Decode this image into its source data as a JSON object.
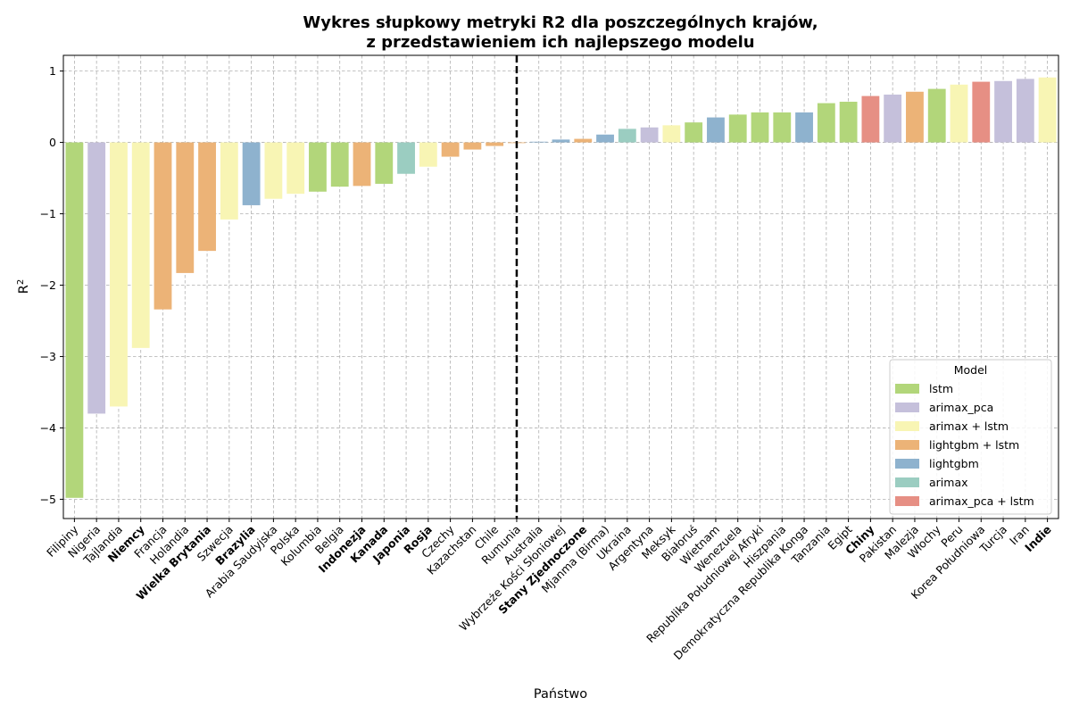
{
  "chart_data": {
    "type": "bar",
    "title_line1": "Wykres słupkowy metryki R2 dla poszczególnych krajów,",
    "title_line2": "z przedstawieniem ich najlepszego modelu",
    "xlabel": "Państwo",
    "ylabel_main": "R",
    "ylabel_sup": "2",
    "ylim": [
      -5.27,
      1.22
    ],
    "yticks": [
      {
        "value": 1,
        "label": "1"
      },
      {
        "value": 0,
        "label": "0"
      },
      {
        "value": -1,
        "label": "−1"
      },
      {
        "value": -2,
        "label": "−2"
      },
      {
        "value": -3,
        "label": "−3"
      },
      {
        "value": -4,
        "label": "−4"
      },
      {
        "value": -5,
        "label": "−5"
      }
    ],
    "grid": true,
    "divider_after_index": 20,
    "categories": [
      {
        "name": "Filipiny",
        "value": -4.98,
        "model": "lstm",
        "bold": false
      },
      {
        "name": "Nigeria",
        "value": -3.8,
        "model": "arimax_pca",
        "bold": false
      },
      {
        "name": "Tajlandia",
        "value": -3.7,
        "model": "arimax + lstm",
        "bold": false
      },
      {
        "name": "Niemcy",
        "value": -2.88,
        "model": "arimax + lstm",
        "bold": true
      },
      {
        "name": "Francja",
        "value": -2.34,
        "model": "lightgbm + lstm",
        "bold": false
      },
      {
        "name": "Holandia",
        "value": -1.83,
        "model": "lightgbm + lstm",
        "bold": false
      },
      {
        "name": "Wielka Brytania",
        "value": -1.52,
        "model": "lightgbm + lstm",
        "bold": true
      },
      {
        "name": "Szwecja",
        "value": -1.08,
        "model": "arimax + lstm",
        "bold": false
      },
      {
        "name": "Brazylia",
        "value": -0.88,
        "model": "lightgbm",
        "bold": true
      },
      {
        "name": "Arabia Saudyjska",
        "value": -0.79,
        "model": "arimax + lstm",
        "bold": false
      },
      {
        "name": "Polska",
        "value": -0.72,
        "model": "arimax + lstm",
        "bold": false
      },
      {
        "name": "Kolumbia",
        "value": -0.69,
        "model": "lstm",
        "bold": false
      },
      {
        "name": "Belgia",
        "value": -0.62,
        "model": "lstm",
        "bold": false
      },
      {
        "name": "Indonezja",
        "value": -0.61,
        "model": "lightgbm + lstm",
        "bold": true
      },
      {
        "name": "Kanada",
        "value": -0.58,
        "model": "lstm",
        "bold": true
      },
      {
        "name": "Japonia",
        "value": -0.44,
        "model": "arimax",
        "bold": true
      },
      {
        "name": "Rosja",
        "value": -0.34,
        "model": "arimax + lstm",
        "bold": true
      },
      {
        "name": "Czechy",
        "value": -0.2,
        "model": "lightgbm + lstm",
        "bold": false
      },
      {
        "name": "Kazachstan",
        "value": -0.1,
        "model": "lightgbm + lstm",
        "bold": false
      },
      {
        "name": "Chile",
        "value": -0.05,
        "model": "lightgbm + lstm",
        "bold": false
      },
      {
        "name": "Rumunia",
        "value": -0.01,
        "model": "lightgbm + lstm",
        "bold": false
      },
      {
        "name": "Australia",
        "value": 0.01,
        "model": "lightgbm",
        "bold": false
      },
      {
        "name": "Wybrzeże Kości Słoniowej",
        "value": 0.04,
        "model": "lightgbm",
        "bold": false
      },
      {
        "name": "Stany Zjednoczone",
        "value": 0.05,
        "model": "lightgbm + lstm",
        "bold": true
      },
      {
        "name": "Mjanma (Birma)",
        "value": 0.11,
        "model": "lightgbm",
        "bold": false
      },
      {
        "name": "Ukraina",
        "value": 0.19,
        "model": "arimax",
        "bold": false
      },
      {
        "name": "Argentyna",
        "value": 0.21,
        "model": "arimax_pca",
        "bold": false
      },
      {
        "name": "Meksyk",
        "value": 0.24,
        "model": "arimax + lstm",
        "bold": false
      },
      {
        "name": "Białoruś",
        "value": 0.28,
        "model": "lstm",
        "bold": false
      },
      {
        "name": "Wietnam",
        "value": 0.35,
        "model": "lightgbm",
        "bold": false
      },
      {
        "name": "Wenezuela",
        "value": 0.39,
        "model": "lstm",
        "bold": false
      },
      {
        "name": "Republika Południowej Afryki",
        "value": 0.42,
        "model": "lstm",
        "bold": false
      },
      {
        "name": "Hiszpania",
        "value": 0.42,
        "model": "lstm",
        "bold": false
      },
      {
        "name": "Demokratyczna Republika Konga",
        "value": 0.42,
        "model": "lightgbm",
        "bold": false
      },
      {
        "name": "Tanzania",
        "value": 0.55,
        "model": "lstm",
        "bold": false
      },
      {
        "name": "Egipt",
        "value": 0.57,
        "model": "lstm",
        "bold": false
      },
      {
        "name": "Chiny",
        "value": 0.65,
        "model": "arimax_pca + lstm",
        "bold": true
      },
      {
        "name": "Pakistan",
        "value": 0.67,
        "model": "arimax_pca",
        "bold": false
      },
      {
        "name": "Malezja",
        "value": 0.71,
        "model": "lightgbm + lstm",
        "bold": false
      },
      {
        "name": "Włochy",
        "value": 0.75,
        "model": "lstm",
        "bold": false
      },
      {
        "name": "Peru",
        "value": 0.81,
        "model": "arimax + lstm",
        "bold": false
      },
      {
        "name": "Korea Południowa",
        "value": 0.85,
        "model": "arimax_pca + lstm",
        "bold": false
      },
      {
        "name": "Turcja",
        "value": 0.86,
        "model": "arimax_pca",
        "bold": false
      },
      {
        "name": "Iran",
        "value": 0.89,
        "model": "arimax_pca",
        "bold": false
      },
      {
        "name": "Indie",
        "value": 0.91,
        "model": "arimax + lstm",
        "bold": true
      }
    ],
    "legend": {
      "title": "Model",
      "placement": "lower right",
      "entries": [
        {
          "label": "lstm",
          "color": "#b2d67a"
        },
        {
          "label": "arimax_pca",
          "color": "#c5c0db"
        },
        {
          "label": "arimax + lstm",
          "color": "#f8f5b4"
        },
        {
          "label": "lightgbm + lstm",
          "color": "#ecb377"
        },
        {
          "label": "lightgbm",
          "color": "#8eb2ce"
        },
        {
          "label": "arimax",
          "color": "#9bcdc1"
        },
        {
          "label": "arimax_pca + lstm",
          "color": "#e68f84"
        }
      ]
    }
  }
}
